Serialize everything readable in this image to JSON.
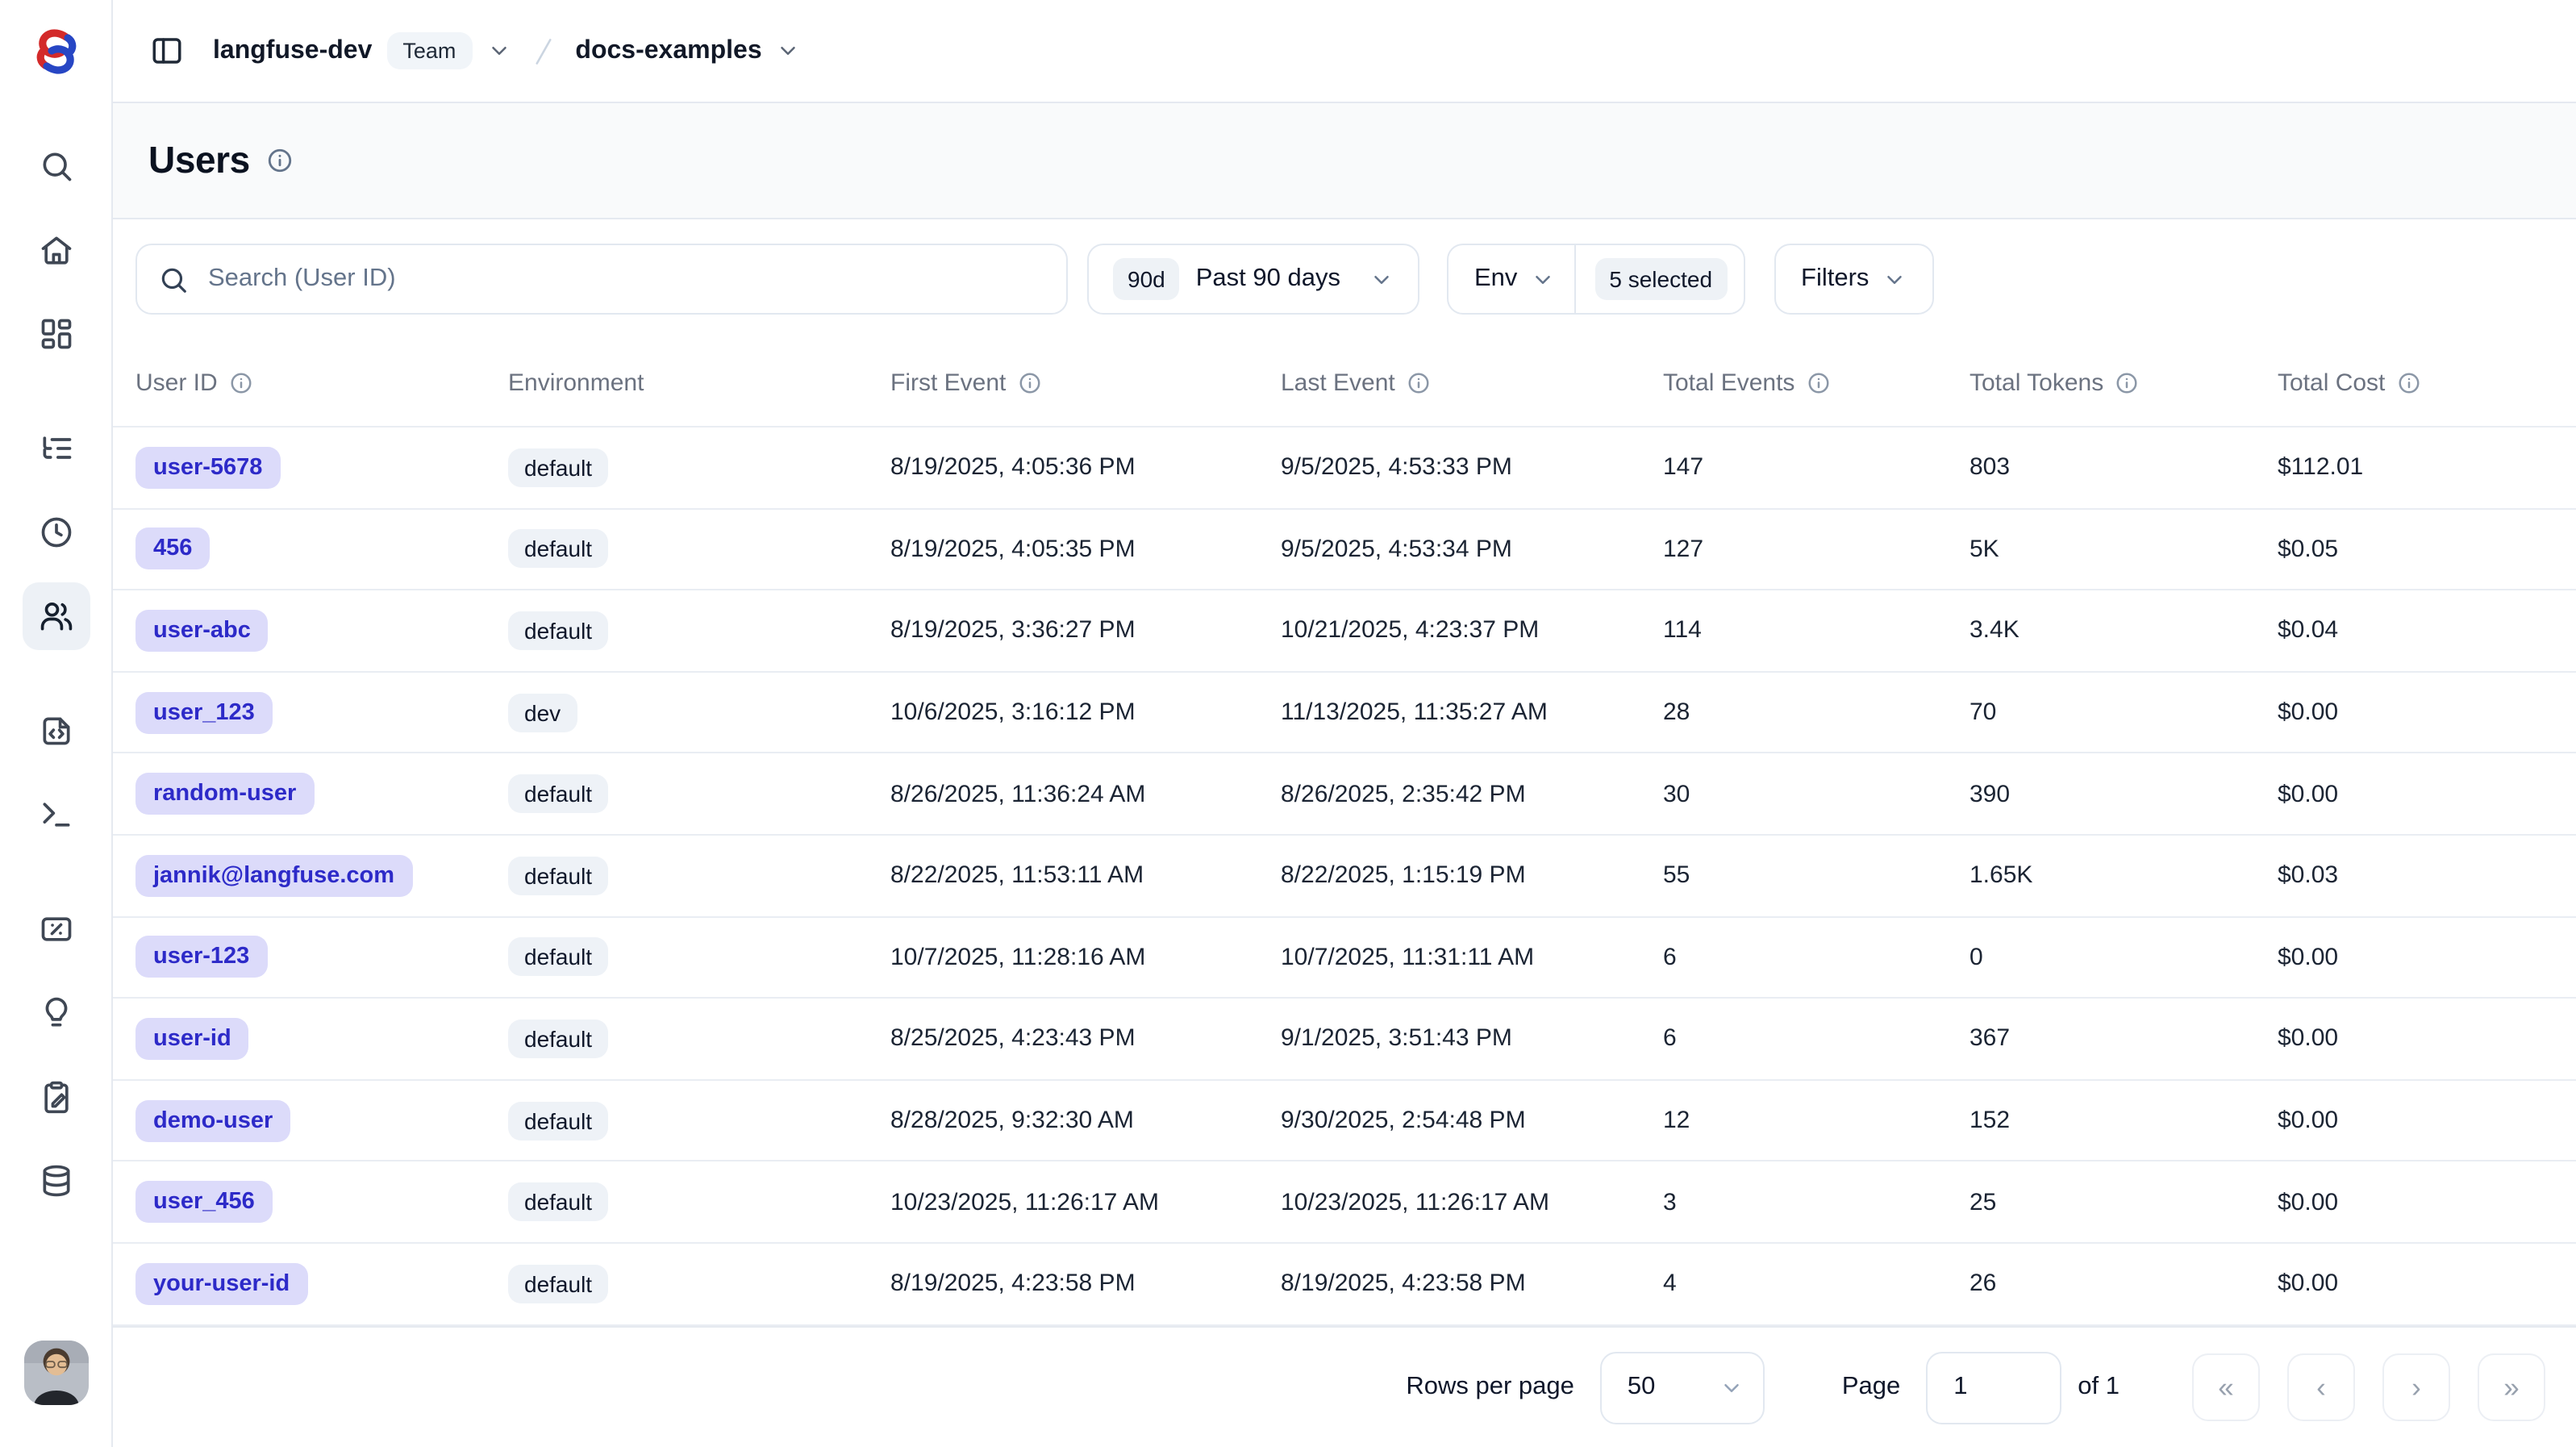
{
  "header": {
    "org": "langfuse-dev",
    "org_badge": "Team",
    "project": "docs-examples"
  },
  "page": {
    "title": "Users"
  },
  "filters": {
    "search_placeholder": "Search (User ID)",
    "date_badge": "90d",
    "date_label": "Past 90 days",
    "env_label": "Env",
    "env_selected": "5 selected",
    "filters_label": "Filters"
  },
  "sidebar": {
    "items": [
      {
        "id": "search",
        "icon": "search-icon"
      },
      {
        "id": "home",
        "icon": "home-icon"
      },
      {
        "id": "dashboards",
        "icon": "dashboards-icon"
      },
      {
        "id": "tracing",
        "icon": "tracing-icon",
        "group_start": true
      },
      {
        "id": "sessions",
        "icon": "sessions-clock-icon"
      },
      {
        "id": "users",
        "icon": "users-icon",
        "active": true
      },
      {
        "id": "prompts",
        "icon": "prompts-file-code-icon",
        "group_start": true
      },
      {
        "id": "playground",
        "icon": "playground-terminal-icon"
      },
      {
        "id": "scores",
        "icon": "scores-percent-icon",
        "group_start": true
      },
      {
        "id": "insights",
        "icon": "lightbulb-icon"
      },
      {
        "id": "evaluation",
        "icon": "evaluation-clipboard-pen-icon"
      },
      {
        "id": "datasets",
        "icon": "datasets-database-icon"
      }
    ]
  },
  "table": {
    "columns": [
      {
        "label": "User ID",
        "info": true
      },
      {
        "label": "Environment",
        "info": false
      },
      {
        "label": "First Event",
        "info": true
      },
      {
        "label": "Last Event",
        "info": true
      },
      {
        "label": "Total Events",
        "info": true
      },
      {
        "label": "Total Tokens",
        "info": true
      },
      {
        "label": "Total Cost",
        "info": true
      }
    ],
    "rows": [
      {
        "user_id": "user-5678",
        "environment": "default",
        "first_event": "8/19/2025, 4:05:36 PM",
        "last_event": "9/5/2025, 4:53:33 PM",
        "total_events": "147",
        "total_tokens": "803",
        "total_cost": "$112.01"
      },
      {
        "user_id": "456",
        "environment": "default",
        "first_event": "8/19/2025, 4:05:35 PM",
        "last_event": "9/5/2025, 4:53:34 PM",
        "total_events": "127",
        "total_tokens": "5K",
        "total_cost": "$0.05"
      },
      {
        "user_id": "user-abc",
        "environment": "default",
        "first_event": "8/19/2025, 3:36:27 PM",
        "last_event": "10/21/2025, 4:23:37 PM",
        "total_events": "114",
        "total_tokens": "3.4K",
        "total_cost": "$0.04"
      },
      {
        "user_id": "user_123",
        "environment": "dev",
        "first_event": "10/6/2025, 3:16:12 PM",
        "last_event": "11/13/2025, 11:35:27 AM",
        "total_events": "28",
        "total_tokens": "70",
        "total_cost": "$0.00"
      },
      {
        "user_id": "random-user",
        "environment": "default",
        "first_event": "8/26/2025, 11:36:24 AM",
        "last_event": "8/26/2025, 2:35:42 PM",
        "total_events": "30",
        "total_tokens": "390",
        "total_cost": "$0.00"
      },
      {
        "user_id": "jannik@langfuse.com",
        "environment": "default",
        "first_event": "8/22/2025, 11:53:11 AM",
        "last_event": "8/22/2025, 1:15:19 PM",
        "total_events": "55",
        "total_tokens": "1.65K",
        "total_cost": "$0.03"
      },
      {
        "user_id": "user-123",
        "environment": "default",
        "first_event": "10/7/2025, 11:28:16 AM",
        "last_event": "10/7/2025, 11:31:11 AM",
        "total_events": "6",
        "total_tokens": "0",
        "total_cost": "$0.00"
      },
      {
        "user_id": "user-id",
        "environment": "default",
        "first_event": "8/25/2025, 4:23:43 PM",
        "last_event": "9/1/2025, 3:51:43 PM",
        "total_events": "6",
        "total_tokens": "367",
        "total_cost": "$0.00"
      },
      {
        "user_id": "demo-user",
        "environment": "default",
        "first_event": "8/28/2025, 9:32:30 AM",
        "last_event": "9/30/2025, 2:54:48 PM",
        "total_events": "12",
        "total_tokens": "152",
        "total_cost": "$0.00"
      },
      {
        "user_id": "user_456",
        "environment": "default",
        "first_event": "10/23/2025, 11:26:17 AM",
        "last_event": "10/23/2025, 11:26:17 AM",
        "total_events": "3",
        "total_tokens": "25",
        "total_cost": "$0.00"
      },
      {
        "user_id": "your-user-id",
        "environment": "default",
        "first_event": "8/19/2025, 4:23:58 PM",
        "last_event": "8/19/2025, 4:23:58 PM",
        "total_events": "4",
        "total_tokens": "26",
        "total_cost": "$0.00"
      }
    ]
  },
  "pagination": {
    "rows_per_page_label": "Rows per page",
    "rows_per_page_value": "50",
    "page_label": "Page",
    "page_value": "1",
    "of_label": "of 1",
    "nav": [
      {
        "name": "first-page",
        "glyph": "«"
      },
      {
        "name": "previous-page",
        "glyph": "‹"
      },
      {
        "name": "next-page",
        "glyph": "›"
      },
      {
        "name": "last-page",
        "glyph": "»"
      }
    ]
  },
  "colors": {
    "user_badge_bg": "#dcdbfa",
    "user_badge_text": "#2d2ac8",
    "env_badge_bg": "#eef2f7",
    "logo_red": "#d32a2a",
    "logo_blue": "#2746c4"
  }
}
